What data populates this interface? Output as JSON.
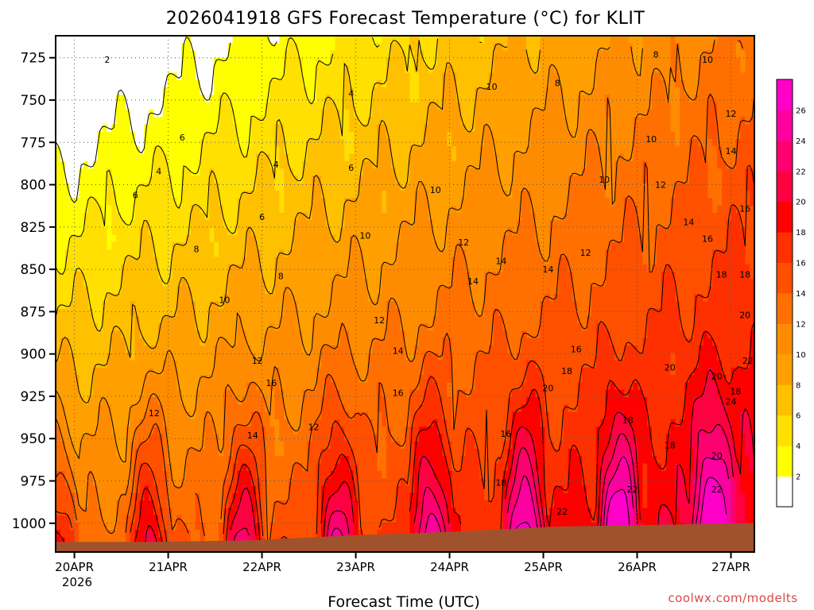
{
  "chart_data": {
    "type": "heatmap",
    "title": "2026041918 GFS Forecast Temperature (°C) for KLIT",
    "xlabel": "Forecast Time (UTC)",
    "ylabel": "",
    "credit": "coolwx.com/modelts",
    "x_ticks": [
      "20APR",
      "21APR",
      "22APR",
      "23APR",
      "24APR",
      "25APR",
      "26APR",
      "27APR"
    ],
    "x_year_label": "2026",
    "x_range_days": [
      -0.2,
      7.25
    ],
    "y_ticks": [
      725,
      750,
      775,
      800,
      825,
      850,
      875,
      900,
      925,
      950,
      975,
      1000
    ],
    "y_range_hpa": [
      1017,
      712
    ],
    "colorbar": {
      "levels": [
        2,
        4,
        6,
        8,
        10,
        12,
        14,
        16,
        18,
        20,
        22,
        24,
        26
      ],
      "colors": [
        "#ffffff",
        "#ffff00",
        "#ffe000",
        "#ffc000",
        "#ffa000",
        "#ff8c00",
        "#ff7000",
        "#ff5000",
        "#ff3000",
        "#ff0000",
        "#ff0040",
        "#ff0070",
        "#ff00a0",
        "#ff00c8"
      ]
    },
    "ground": {
      "color": "#a0522d",
      "surface_pressure_hpa": [
        1011,
        1011,
        1010,
        1007,
        1005,
        1002,
        1001,
        1000
      ]
    },
    "contour_labels": [
      {
        "value": "2",
        "day": 0.35,
        "p": 726
      },
      {
        "value": "4",
        "day": 0.9,
        "p": 792
      },
      {
        "value": "4",
        "day": 2.95,
        "p": 746
      },
      {
        "value": "4",
        "day": 2.15,
        "p": 788
      },
      {
        "value": "6",
        "day": 1.15,
        "p": 772
      },
      {
        "value": "6",
        "day": 0.65,
        "p": 806
      },
      {
        "value": "6",
        "day": 2.0,
        "p": 819
      },
      {
        "value": "6",
        "day": 2.95,
        "p": 790
      },
      {
        "value": "8",
        "day": 1.3,
        "p": 838
      },
      {
        "value": "8",
        "day": 2.2,
        "p": 854
      },
      {
        "value": "8",
        "day": 5.15,
        "p": 740
      },
      {
        "value": "8",
        "day": 6.2,
        "p": 723
      },
      {
        "value": "10",
        "day": 1.6,
        "p": 868
      },
      {
        "value": "10",
        "day": 3.1,
        "p": 830
      },
      {
        "value": "10",
        "day": 3.85,
        "p": 803
      },
      {
        "value": "10",
        "day": 4.45,
        "p": 742
      },
      {
        "value": "10",
        "day": 5.65,
        "p": 797
      },
      {
        "value": "10",
        "day": 6.15,
        "p": 773
      },
      {
        "value": "10",
        "day": 6.75,
        "p": 726
      },
      {
        "value": "12",
        "day": 1.95,
        "p": 904
      },
      {
        "value": "12",
        "day": 3.25,
        "p": 880
      },
      {
        "value": "12",
        "day": 4.15,
        "p": 834
      },
      {
        "value": "12",
        "day": 5.45,
        "p": 840
      },
      {
        "value": "12",
        "day": 6.25,
        "p": 800
      },
      {
        "value": "12",
        "day": 0.85,
        "p": 935
      },
      {
        "value": "12",
        "day": 2.55,
        "p": 943
      },
      {
        "value": "12",
        "day": 7.0,
        "p": 758
      },
      {
        "value": "14",
        "day": 1.9,
        "p": 948
      },
      {
        "value": "14",
        "day": 3.45,
        "p": 898
      },
      {
        "value": "14",
        "day": 4.25,
        "p": 857
      },
      {
        "value": "14",
        "day": 4.55,
        "p": 845
      },
      {
        "value": "14",
        "day": 5.05,
        "p": 850
      },
      {
        "value": "14",
        "day": 6.55,
        "p": 822
      },
      {
        "value": "14",
        "day": 7.0,
        "p": 780
      },
      {
        "value": "16",
        "day": 2.1,
        "p": 917
      },
      {
        "value": "16",
        "day": 3.45,
        "p": 923
      },
      {
        "value": "16",
        "day": 4.6,
        "p": 947
      },
      {
        "value": "16",
        "day": 5.35,
        "p": 897
      },
      {
        "value": "16",
        "day": 6.75,
        "p": 832
      },
      {
        "value": "16",
        "day": 7.15,
        "p": 814
      },
      {
        "value": "18",
        "day": 5.25,
        "p": 910
      },
      {
        "value": "18",
        "day": 4.55,
        "p": 976
      },
      {
        "value": "18",
        "day": 5.9,
        "p": 939
      },
      {
        "value": "18",
        "day": 6.35,
        "p": 954
      },
      {
        "value": "18",
        "day": 6.9,
        "p": 853
      },
      {
        "value": "18",
        "day": 7.05,
        "p": 922
      },
      {
        "value": "18",
        "day": 7.15,
        "p": 853
      },
      {
        "value": "20",
        "day": 5.05,
        "p": 920
      },
      {
        "value": "20",
        "day": 6.35,
        "p": 908
      },
      {
        "value": "20",
        "day": 6.85,
        "p": 913
      },
      {
        "value": "20",
        "day": 6.85,
        "p": 960
      },
      {
        "value": "20",
        "day": 7.15,
        "p": 877
      },
      {
        "value": "22",
        "day": 5.2,
        "p": 993
      },
      {
        "value": "22",
        "day": 5.95,
        "p": 980
      },
      {
        "value": "22",
        "day": 6.85,
        "p": 980
      },
      {
        "value": "22",
        "day": 7.18,
        "p": 904
      },
      {
        "value": "24",
        "day": 7.0,
        "p": 928
      }
    ]
  }
}
